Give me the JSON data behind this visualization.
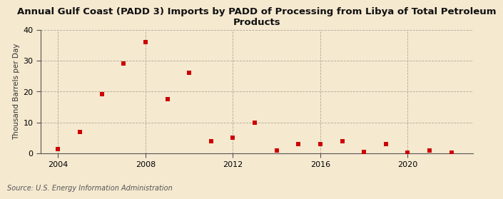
{
  "title": "Annual Gulf Coast (PADD 3) Imports by PADD of Processing from Libya of Total Petroleum\nProducts",
  "ylabel": "Thousand Barrels per Day",
  "source": "Source: U.S. Energy Information Administration",
  "background_color": "#f5e9d0",
  "plot_background_color": "#f5e9d0",
  "years": [
    2004,
    2005,
    2006,
    2007,
    2008,
    2009,
    2010,
    2011,
    2012,
    2013,
    2014,
    2015,
    2016,
    2017,
    2018,
    2019,
    2020,
    2021,
    2022
  ],
  "values": [
    1.5,
    7.0,
    19.2,
    29.2,
    36.0,
    17.5,
    26.0,
    4.0,
    5.0,
    10.0,
    1.0,
    3.0,
    3.0,
    4.0,
    0.5,
    3.0,
    0.3,
    1.0,
    0.3
  ],
  "marker_color": "#cc0000",
  "marker_size": 4,
  "ylim": [
    0,
    40
  ],
  "yticks": [
    0,
    10,
    20,
    30,
    40
  ],
  "xlim": [
    2003.2,
    2023.0
  ],
  "xticks": [
    2004,
    2008,
    2012,
    2016,
    2020
  ],
  "vgrid_years": [
    2004,
    2008,
    2012,
    2016,
    2020
  ],
  "title_fontsize": 9.5,
  "ylabel_fontsize": 7.5,
  "tick_fontsize": 8,
  "source_fontsize": 7
}
